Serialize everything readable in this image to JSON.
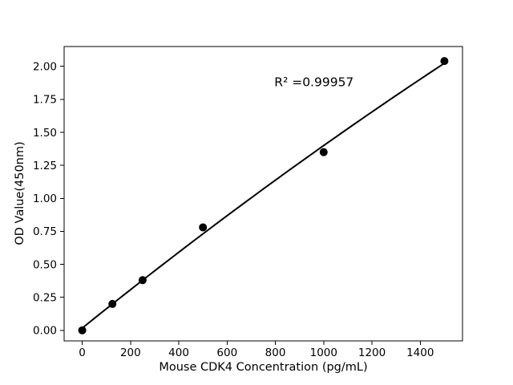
{
  "chart_data": {
    "type": "scatter",
    "title": "",
    "xlabel": "Mouse CDK4 Concentration (pg/mL)",
    "ylabel": "OD Value(450nm)",
    "annotation": {
      "text": "R² =0.99957",
      "x": 960,
      "y": 1.88
    },
    "points": {
      "x": [
        0,
        125,
        250,
        500,
        1000,
        1500
      ],
      "y": [
        0.0,
        0.2,
        0.38,
        0.78,
        1.35,
        2.04
      ]
    },
    "fit": {
      "type": "polynomial",
      "degree": 2,
      "draw_range": [
        0,
        1500
      ]
    },
    "xlim": [
      -75,
      1575
    ],
    "ylim": [
      -0.08,
      2.15
    ],
    "xticks": {
      "values": [
        0,
        200,
        400,
        600,
        800,
        1000,
        1200,
        1400
      ],
      "labels": [
        "0",
        "200",
        "400",
        "600",
        "800",
        "1000",
        "1200",
        "1400"
      ]
    },
    "yticks": {
      "values": [
        0,
        0.25,
        0.5,
        0.75,
        1.0,
        1.25,
        1.5,
        1.75,
        2.0
      ],
      "labels": [
        "0.00",
        "0.25",
        "0.50",
        "0.75",
        "1.00",
        "1.25",
        "1.50",
        "1.75",
        "2.00"
      ]
    },
    "legend": null,
    "grid": false,
    "colors": {
      "background": "#ffffff",
      "marker": "#000000",
      "line": "#000000",
      "axis": "#000000",
      "text": "#000000"
    }
  }
}
